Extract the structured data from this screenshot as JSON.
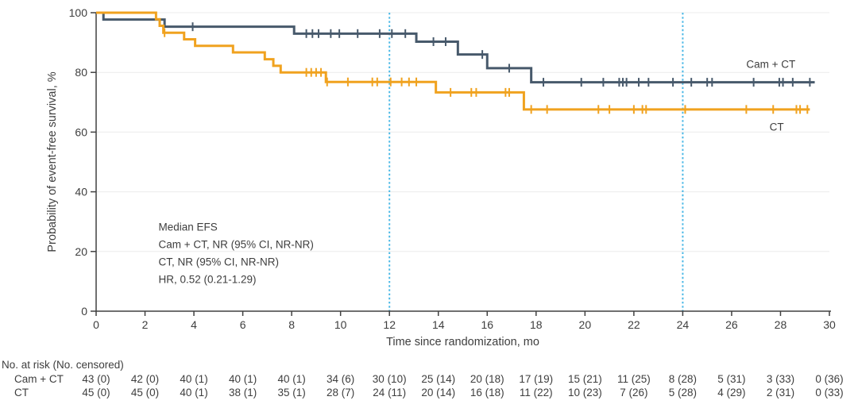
{
  "chart_data": {
    "type": "line",
    "subtype": "kaplan-meier-step",
    "title": "",
    "xlabel": "Time since randomization, mo",
    "ylabel": "Probability of event-free survival, %",
    "xlim": [
      0,
      30
    ],
    "ylim": [
      0,
      100
    ],
    "xticks": [
      0,
      2,
      4,
      6,
      8,
      10,
      12,
      14,
      16,
      18,
      20,
      22,
      24,
      26,
      28,
      30
    ],
    "yticks": [
      0,
      20,
      40,
      60,
      80,
      100
    ],
    "grid": "horizontal-light",
    "reference_lines_x": [
      12,
      24
    ],
    "colors": {
      "grid": "#ececec",
      "axis": "#414141",
      "reference": "#4cb9e6",
      "cam_ct": "#47596b",
      "ct": "#f0a21f"
    },
    "series": [
      {
        "id": "cam-ct",
        "name": "Cam + CT",
        "color": "#47596b",
        "label_pos": [
          26.6,
          81.5
        ],
        "end_x": 29.4,
        "steps": [
          [
            0,
            100
          ],
          [
            0.3,
            97.7
          ],
          [
            2.8,
            95.3
          ],
          [
            8.1,
            93.0
          ],
          [
            13.1,
            90.3
          ],
          [
            14.8,
            86.0
          ],
          [
            16.0,
            81.4
          ],
          [
            17.8,
            76.7
          ]
        ],
        "censors": [
          [
            3.95,
            95.3
          ],
          [
            8.6,
            93.0
          ],
          [
            8.85,
            93.0
          ],
          [
            9.1,
            93.0
          ],
          [
            9.6,
            93.0
          ],
          [
            9.95,
            93.0
          ],
          [
            10.7,
            93.0
          ],
          [
            11.6,
            93.0
          ],
          [
            12.1,
            93.0
          ],
          [
            12.65,
            93.0
          ],
          [
            13.8,
            90.3
          ],
          [
            14.3,
            90.3
          ],
          [
            15.8,
            86.0
          ],
          [
            16.9,
            81.4
          ],
          [
            18.3,
            76.7
          ],
          [
            19.85,
            76.7
          ],
          [
            20.75,
            76.7
          ],
          [
            21.4,
            76.7
          ],
          [
            21.55,
            76.7
          ],
          [
            21.7,
            76.7
          ],
          [
            22.2,
            76.7
          ],
          [
            22.6,
            76.7
          ],
          [
            23.6,
            76.7
          ],
          [
            24.35,
            76.7
          ],
          [
            25.0,
            76.7
          ],
          [
            25.2,
            76.7
          ],
          [
            26.9,
            76.7
          ],
          [
            27.95,
            76.7
          ],
          [
            28.1,
            76.7
          ],
          [
            28.5,
            76.7
          ],
          [
            29.2,
            76.7
          ]
        ]
      },
      {
        "id": "ct",
        "name": "CT",
        "color": "#f0a21f",
        "label_pos": [
          27.55,
          60.5
        ],
        "end_x": 29.2,
        "steps": [
          [
            0,
            100
          ],
          [
            2.45,
            97.8
          ],
          [
            2.6,
            95.6
          ],
          [
            2.75,
            93.3
          ],
          [
            3.6,
            91.1
          ],
          [
            4.05,
            88.9
          ],
          [
            5.6,
            86.7
          ],
          [
            6.9,
            84.4
          ],
          [
            7.25,
            82.2
          ],
          [
            7.55,
            80.0
          ],
          [
            9.4,
            76.8
          ],
          [
            13.9,
            73.3
          ],
          [
            17.5,
            67.6
          ]
        ],
        "censors": [
          [
            2.8,
            93.3
          ],
          [
            8.6,
            80.0
          ],
          [
            8.8,
            80.0
          ],
          [
            9.0,
            80.0
          ],
          [
            9.2,
            80.0
          ],
          [
            9.45,
            76.8
          ],
          [
            10.3,
            76.8
          ],
          [
            11.3,
            76.8
          ],
          [
            11.5,
            76.8
          ],
          [
            12.05,
            76.8
          ],
          [
            12.5,
            76.8
          ],
          [
            12.8,
            76.8
          ],
          [
            13.1,
            76.8
          ],
          [
            14.5,
            73.3
          ],
          [
            15.35,
            73.3
          ],
          [
            15.55,
            73.3
          ],
          [
            16.75,
            73.3
          ],
          [
            16.9,
            73.3
          ],
          [
            17.8,
            67.6
          ],
          [
            18.45,
            67.6
          ],
          [
            20.55,
            67.6
          ],
          [
            21.0,
            67.6
          ],
          [
            22.0,
            67.6
          ],
          [
            22.35,
            67.6
          ],
          [
            22.5,
            67.6
          ],
          [
            24.1,
            67.6
          ],
          [
            26.6,
            67.6
          ],
          [
            27.7,
            67.6
          ],
          [
            28.65,
            67.6
          ],
          [
            28.8,
            67.6
          ],
          [
            29.1,
            67.6
          ]
        ]
      }
    ],
    "annotation": {
      "x": 2.55,
      "y": 27,
      "line_height_px": 22,
      "lines": [
        "Median EFS",
        "Cam + CT, NR (95% CI, NR-NR)",
        "CT, NR (95% CI, NR-NR)",
        "HR, 0.52 (0.21-1.29)"
      ]
    }
  },
  "risk_table": {
    "title": "No. at risk (No. censored)",
    "months": [
      0,
      2,
      4,
      6,
      8,
      10,
      12,
      14,
      16,
      18,
      20,
      22,
      24,
      26,
      28,
      30
    ],
    "rows": [
      {
        "label": "Cam + CT",
        "values": [
          "43 (0)",
          "42 (0)",
          "40 (1)",
          "40 (1)",
          "40 (1)",
          "34 (6)",
          "30 (10)",
          "25 (14)",
          "20 (18)",
          "17 (19)",
          "15 (21)",
          "11 (25)",
          "8 (28)",
          "5 (31)",
          "3 (33)",
          "0 (36)"
        ]
      },
      {
        "label": "CT",
        "values": [
          "45 (0)",
          "45 (0)",
          "40 (1)",
          "38 (1)",
          "35 (1)",
          "28 (7)",
          "24 (11)",
          "20 (14)",
          "16 (18)",
          "11 (22)",
          "10 (23)",
          "7 (26)",
          "5 (28)",
          "4 (29)",
          "2 (31)",
          "0 (33)"
        ]
      }
    ]
  }
}
